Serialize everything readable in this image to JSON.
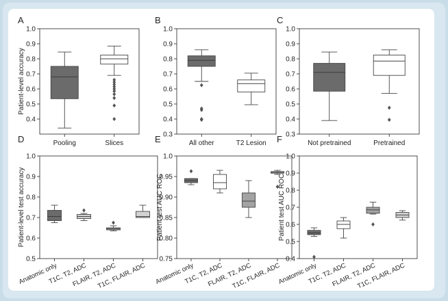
{
  "colors": {
    "background": "#c9dde9",
    "panel": "#ffffff",
    "dark": "#6b6b6b",
    "mid": "#a3a3a3",
    "light": "#d2d2d2",
    "white": "#ffffff"
  },
  "chart_data": [
    {
      "panel": "A",
      "type": "box",
      "ylabel": "Patient-level accuracy",
      "ylim": [
        0.3,
        1.0
      ],
      "yticks": [
        "0.4",
        "0.5",
        "0.6",
        "0.7",
        "0.8",
        "0.9",
        "1.0"
      ],
      "categories": [
        "Pooling",
        "Slices"
      ],
      "boxes": [
        {
          "min": 0.34,
          "q1": 0.535,
          "median": 0.68,
          "q3": 0.75,
          "max": 0.845,
          "fill": "dark",
          "outliers": []
        },
        {
          "min": 0.69,
          "q1": 0.765,
          "median": 0.8,
          "q3": 0.825,
          "max": 0.885,
          "fill": "white",
          "outliers": [
            0.66,
            0.645,
            0.63,
            0.615,
            0.6,
            0.585,
            0.565,
            0.54,
            0.49,
            0.4
          ]
        }
      ]
    },
    {
      "panel": "B",
      "type": "box",
      "ylabel": "",
      "ylim": [
        0.3,
        1.0
      ],
      "yticks": [
        "0.3",
        "0.4",
        "0.5",
        "0.6",
        "0.7",
        "0.8",
        "0.9",
        "1.0"
      ],
      "categories": [
        "All other",
        "T2 Lesion"
      ],
      "boxes": [
        {
          "min": 0.65,
          "q1": 0.75,
          "median": 0.79,
          "q3": 0.82,
          "max": 0.86,
          "fill": "dark",
          "outliers": [
            0.625,
            0.47,
            0.46,
            0.4,
            0.395
          ]
        },
        {
          "min": 0.495,
          "q1": 0.58,
          "median": 0.635,
          "q3": 0.66,
          "max": 0.705,
          "fill": "white",
          "outliers": []
        }
      ]
    },
    {
      "panel": "C",
      "type": "box",
      "ylabel": "",
      "ylim": [
        0.3,
        1.0
      ],
      "yticks": [
        "0.3",
        "0.4",
        "0.5",
        "0.6",
        "0.7",
        "0.8",
        "0.9",
        "1.0"
      ],
      "categories": [
        "Not pretrained",
        "Pretrained"
      ],
      "boxes": [
        {
          "min": 0.39,
          "q1": 0.585,
          "median": 0.71,
          "q3": 0.77,
          "max": 0.845,
          "fill": "dark",
          "outliers": []
        },
        {
          "min": 0.57,
          "q1": 0.69,
          "median": 0.785,
          "q3": 0.825,
          "max": 0.86,
          "fill": "white",
          "outliers": [
            0.475,
            0.395
          ]
        }
      ]
    },
    {
      "panel": "D",
      "type": "box",
      "ylabel": "Patient-level test accuracy",
      "ylim": [
        0.5,
        1.0
      ],
      "yticks": [
        "0.5",
        "0.6",
        "0.7",
        "0.8",
        "0.9",
        "1.0"
      ],
      "categories": [
        "Anatomic only",
        "T1C, T2, ADC",
        "FLAIR, T2, ADC",
        "T1C, FLAIR, ADC"
      ],
      "boxes": [
        {
          "min": 0.675,
          "q1": 0.685,
          "median": 0.705,
          "q3": 0.735,
          "max": 0.76,
          "fill": "dark",
          "outliers": []
        },
        {
          "min": 0.685,
          "q1": 0.695,
          "median": 0.705,
          "q3": 0.715,
          "max": 0.72,
          "fill": "light",
          "outliers": [
            0.735
          ]
        },
        {
          "min": 0.635,
          "q1": 0.64,
          "median": 0.645,
          "q3": 0.65,
          "max": 0.66,
          "fill": "mid",
          "outliers": [
            0.675
          ]
        },
        {
          "min": 0.7,
          "q1": 0.7,
          "median": 0.705,
          "q3": 0.73,
          "max": 0.76,
          "fill": "light",
          "outliers": []
        }
      ]
    },
    {
      "panel": "E",
      "type": "box",
      "ylabel": "Patient test AUC ROC",
      "ylim": [
        0.75,
        1.0
      ],
      "yticks": [
        "0.75",
        "0.80",
        "0.85",
        "0.90",
        "0.95",
        "1.0"
      ],
      "categories": [
        "Anatomic only",
        "T1C, T2, ADC",
        "FLAIR, T2, ADC",
        "T1C, FLAIR, ADC"
      ],
      "boxes": [
        {
          "min": 0.93,
          "q1": 0.935,
          "median": 0.94,
          "q3": 0.945,
          "max": 0.945,
          "fill": "dark",
          "outliers": [
            0.963
          ]
        },
        {
          "min": 0.91,
          "q1": 0.92,
          "median": 0.935,
          "q3": 0.955,
          "max": 0.965,
          "fill": "white",
          "outliers": []
        },
        {
          "min": 0.85,
          "q1": 0.875,
          "median": 0.89,
          "q3": 0.91,
          "max": 0.94,
          "fill": "mid",
          "outliers": []
        },
        {
          "min": 0.955,
          "q1": 0.958,
          "median": 0.96,
          "q3": 0.962,
          "max": 0.965,
          "fill": "light",
          "outliers": [
            0.925
          ]
        }
      ]
    },
    {
      "panel": "F",
      "type": "box",
      "ylabel": "Patient test AUC ROC",
      "ylim": [
        0.4,
        1.0
      ],
      "yticks": [
        "0.4",
        "0.5",
        "0.6",
        "0.7",
        "0.8",
        "0.9",
        "1.0"
      ],
      "categories": [
        "Anatomic only",
        "T1C, T2, ADC",
        "FLAIR, T2, ADC",
        "T1C, FLAIR, ADC"
      ],
      "boxes": [
        {
          "min": 0.53,
          "q1": 0.54,
          "median": 0.55,
          "q3": 0.565,
          "max": 0.58,
          "fill": "dark",
          "outliers": [
            0.41
          ]
        },
        {
          "min": 0.52,
          "q1": 0.575,
          "median": 0.6,
          "q3": 0.62,
          "max": 0.64,
          "fill": "white",
          "outliers": []
        },
        {
          "min": 0.66,
          "q1": 0.665,
          "median": 0.685,
          "q3": 0.7,
          "max": 0.73,
          "fill": "mid",
          "outliers": [
            0.6
          ]
        },
        {
          "min": 0.625,
          "q1": 0.64,
          "median": 0.655,
          "q3": 0.67,
          "max": 0.68,
          "fill": "light",
          "outliers": []
        }
      ]
    }
  ]
}
